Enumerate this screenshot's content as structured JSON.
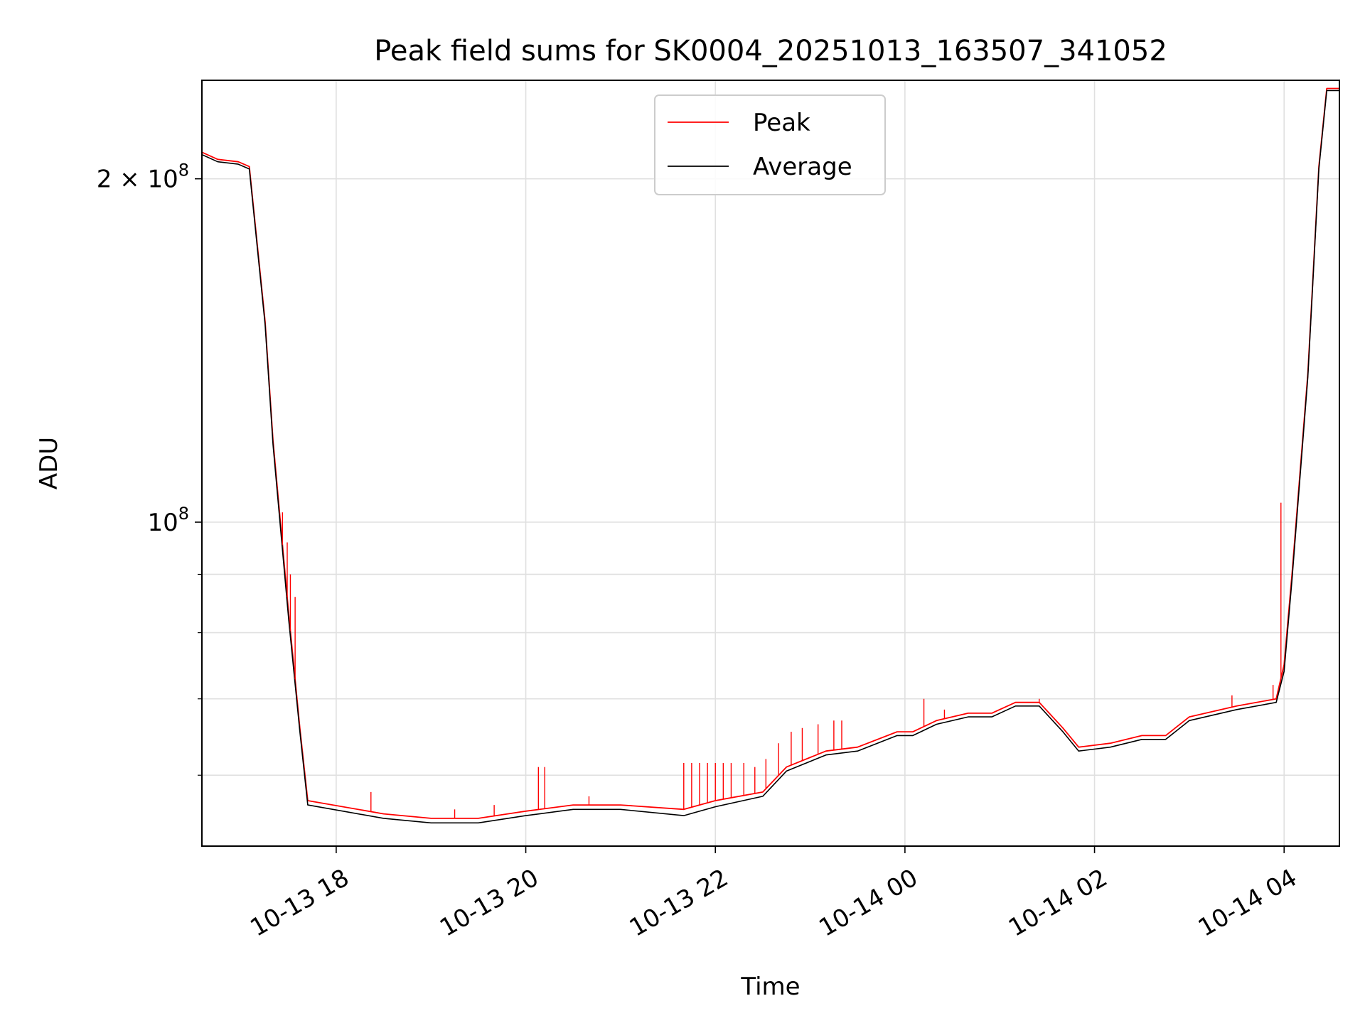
{
  "chart_data": {
    "type": "line",
    "title": "Peak field sums for SK0004_20251013_163507_341052",
    "xlabel": "Time",
    "ylabel": "ADU",
    "yscale": "log",
    "grid": true,
    "legend_placement": "upper-center",
    "xlim": [
      "2025-10-13 16:35",
      "2025-10-14 04:35"
    ],
    "ylim": [
      52000000,
      244000000
    ],
    "x_ticks": [
      {
        "value": "2025-10-13 18:00",
        "label": "10-13 18"
      },
      {
        "value": "2025-10-13 20:00",
        "label": "10-13 20"
      },
      {
        "value": "2025-10-13 22:00",
        "label": "10-13 22"
      },
      {
        "value": "2025-10-14 00:00",
        "label": "10-14 00"
      },
      {
        "value": "2025-10-14 02:00",
        "label": "10-14 02"
      },
      {
        "value": "2025-10-14 04:00",
        "label": "10-14 04"
      }
    ],
    "y_major_ticks": [
      {
        "value": 100000000,
        "mantissa": "",
        "exp": "8"
      },
      {
        "value": 200000000,
        "mantissa": "2",
        "exp": "8"
      }
    ],
    "y_minor_ticks": [
      60000000,
      70000000,
      80000000,
      90000000
    ],
    "series": [
      {
        "name": "Peak",
        "color": "#ff0000",
        "x": [
          "2025-10-13 16:35",
          "2025-10-13 16:45",
          "2025-10-13 16:58",
          "2025-10-13 17:05",
          "2025-10-13 17:15",
          "2025-10-13 17:20",
          "2025-10-13 17:30",
          "2025-10-13 17:37",
          "2025-10-13 17:42",
          "2025-10-13 18:30",
          "2025-10-13 19:00",
          "2025-10-13 19:30",
          "2025-10-13 20:00",
          "2025-10-13 20:30",
          "2025-10-13 21:00",
          "2025-10-13 21:40",
          "2025-10-13 22:00",
          "2025-10-13 22:30",
          "2025-10-13 22:45",
          "2025-10-13 23:10",
          "2025-10-13 23:30",
          "2025-10-13 23:55",
          "2025-10-14 00:05",
          "2025-10-14 00:20",
          "2025-10-14 00:40",
          "2025-10-14 00:55",
          "2025-10-14 01:10",
          "2025-10-14 01:25",
          "2025-10-14 01:40",
          "2025-10-14 01:50",
          "2025-10-14 02:10",
          "2025-10-14 02:30",
          "2025-10-14 02:45",
          "2025-10-14 03:00",
          "2025-10-14 03:30",
          "2025-10-14 03:55",
          "2025-10-14 04:00",
          "2025-10-14 04:05",
          "2025-10-14 04:15",
          "2025-10-14 04:22",
          "2025-10-14 04:27",
          "2025-10-14 04:35"
        ],
        "values": [
          211000000,
          208000000,
          207000000,
          205000000,
          150000000,
          118000000,
          83000000,
          66000000,
          57000000,
          55500000,
          55000000,
          55000000,
          55800000,
          56500000,
          56500000,
          56000000,
          57000000,
          58000000,
          61000000,
          63000000,
          63500000,
          65500000,
          65500000,
          67000000,
          68000000,
          68000000,
          69500000,
          69500000,
          66000000,
          63500000,
          64000000,
          65000000,
          65000000,
          67500000,
          69000000,
          70000000,
          75000000,
          90000000,
          135000000,
          205000000,
          240000000,
          240000000
        ]
      },
      {
        "name": "Average",
        "color": "#000000",
        "x": [
          "2025-10-13 16:35",
          "2025-10-13 16:45",
          "2025-10-13 16:58",
          "2025-10-13 17:05",
          "2025-10-13 17:15",
          "2025-10-13 17:20",
          "2025-10-13 17:30",
          "2025-10-13 17:37",
          "2025-10-13 17:42",
          "2025-10-13 18:30",
          "2025-10-13 19:00",
          "2025-10-13 19:30",
          "2025-10-13 20:00",
          "2025-10-13 20:30",
          "2025-10-13 21:00",
          "2025-10-13 21:40",
          "2025-10-13 22:00",
          "2025-10-13 22:30",
          "2025-10-13 22:45",
          "2025-10-13 23:10",
          "2025-10-13 23:30",
          "2025-10-13 23:55",
          "2025-10-14 00:05",
          "2025-10-14 00:20",
          "2025-10-14 00:40",
          "2025-10-14 00:55",
          "2025-10-14 01:10",
          "2025-10-14 01:25",
          "2025-10-14 01:40",
          "2025-10-14 01:50",
          "2025-10-14 02:10",
          "2025-10-14 02:30",
          "2025-10-14 02:45",
          "2025-10-14 03:00",
          "2025-10-14 03:30",
          "2025-10-14 03:55",
          "2025-10-14 04:00",
          "2025-10-14 04:05",
          "2025-10-14 04:15",
          "2025-10-14 04:22",
          "2025-10-14 04:27",
          "2025-10-14 04:35"
        ],
        "values": [
          210000000,
          207000000,
          206000000,
          204000000,
          149000000,
          117000000,
          82000000,
          65500000,
          56500000,
          55000000,
          54500000,
          54500000,
          55300000,
          56000000,
          56000000,
          55300000,
          56300000,
          57500000,
          60500000,
          62500000,
          63000000,
          65000000,
          65000000,
          66500000,
          67500000,
          67500000,
          69000000,
          69000000,
          65500000,
          63000000,
          63500000,
          64500000,
          64500000,
          67000000,
          68500000,
          69500000,
          74000000,
          89000000,
          134000000,
          204000000,
          239000000,
          239000000
        ]
      }
    ],
    "peak_spikes": [
      {
        "x": "2025-10-13 17:26",
        "value": 102000000
      },
      {
        "x": "2025-10-13 17:29",
        "value": 96000000
      },
      {
        "x": "2025-10-13 17:31",
        "value": 90000000
      },
      {
        "x": "2025-10-13 17:34",
        "value": 86000000
      },
      {
        "x": "2025-10-13 18:22",
        "value": 58000000
      },
      {
        "x": "2025-10-13 19:15",
        "value": 56000000
      },
      {
        "x": "2025-10-13 19:40",
        "value": 56500000
      },
      {
        "x": "2025-10-13 20:08",
        "value": 61000000
      },
      {
        "x": "2025-10-13 20:12",
        "value": 61000000
      },
      {
        "x": "2025-10-13 20:40",
        "value": 57500000
      },
      {
        "x": "2025-10-13 21:40",
        "value": 61500000
      },
      {
        "x": "2025-10-13 21:45",
        "value": 61500000
      },
      {
        "x": "2025-10-13 21:50",
        "value": 61500000
      },
      {
        "x": "2025-10-13 21:55",
        "value": 61500000
      },
      {
        "x": "2025-10-13 22:00",
        "value": 61500000
      },
      {
        "x": "2025-10-13 22:05",
        "value": 61500000
      },
      {
        "x": "2025-10-13 22:10",
        "value": 61500000
      },
      {
        "x": "2025-10-13 22:18",
        "value": 61500000
      },
      {
        "x": "2025-10-13 22:25",
        "value": 61000000
      },
      {
        "x": "2025-10-13 22:32",
        "value": 62000000
      },
      {
        "x": "2025-10-13 22:40",
        "value": 64000000
      },
      {
        "x": "2025-10-13 22:48",
        "value": 65500000
      },
      {
        "x": "2025-10-13 22:55",
        "value": 66000000
      },
      {
        "x": "2025-10-13 23:05",
        "value": 66500000
      },
      {
        "x": "2025-10-13 23:15",
        "value": 67000000
      },
      {
        "x": "2025-10-13 23:20",
        "value": 67000000
      },
      {
        "x": "2025-10-14 00:12",
        "value": 70000000
      },
      {
        "x": "2025-10-14 00:25",
        "value": 68500000
      },
      {
        "x": "2025-10-14 01:25",
        "value": 70000000
      },
      {
        "x": "2025-10-14 03:27",
        "value": 70500000
      },
      {
        "x": "2025-10-14 03:53",
        "value": 72000000
      },
      {
        "x": "2025-10-14 03:58",
        "value": 104000000
      }
    ]
  }
}
